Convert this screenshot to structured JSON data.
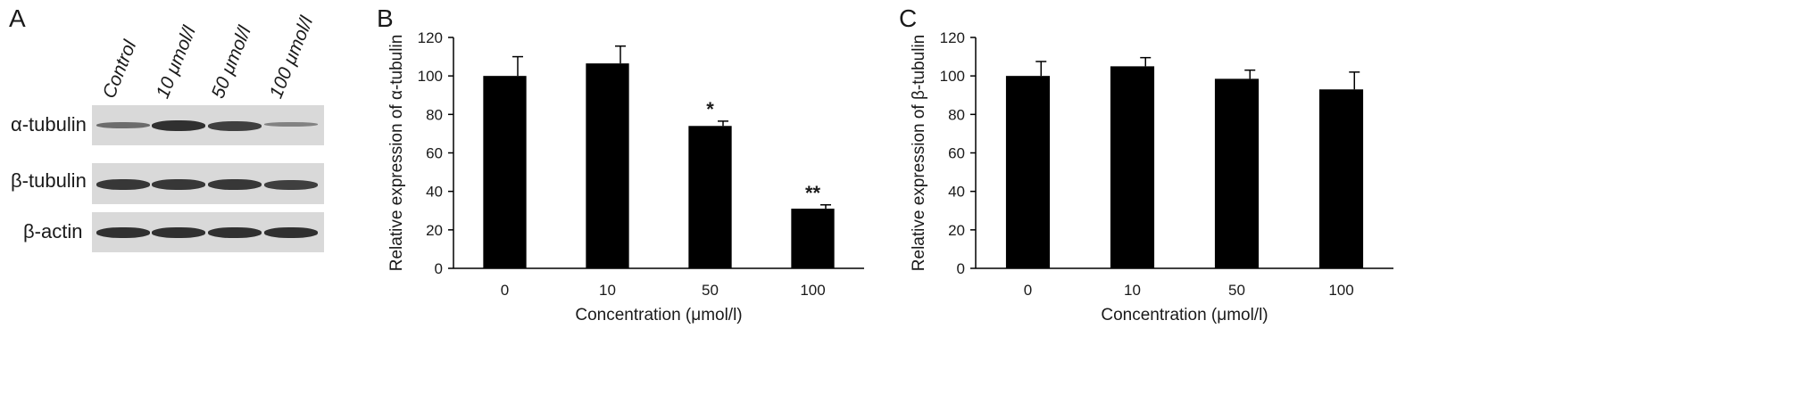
{
  "panels": {
    "a": {
      "letter": "A",
      "lanes": [
        "Control",
        "10 μmol/l",
        "50 μmol/l",
        "100 μmol/l"
      ],
      "rows": [
        {
          "label": "α-tubulin",
          "band_intensity": [
            0.55,
            0.95,
            0.85,
            0.4
          ]
        },
        {
          "label": "β-tubulin",
          "band_intensity": [
            0.9,
            0.9,
            0.9,
            0.85
          ]
        },
        {
          "label": "β-actin",
          "band_intensity": [
            0.95,
            0.95,
            0.95,
            0.95
          ]
        }
      ]
    },
    "b": {
      "letter": "B"
    },
    "c": {
      "letter": "C"
    }
  },
  "chart_data": [
    {
      "type": "bar",
      "panel": "B",
      "categories": [
        "0",
        "10",
        "50",
        "100"
      ],
      "values": [
        100,
        106.5,
        74,
        31
      ],
      "errors": [
        10,
        9,
        2.5,
        2
      ],
      "annotations": [
        "",
        "",
        "*",
        "**"
      ],
      "xlabel": "Concentration (μmol/l)",
      "ylabel": "Relative expression of α-tubulin",
      "ylim": [
        0,
        120
      ],
      "yticks": [
        0,
        20,
        40,
        60,
        80,
        100,
        120
      ],
      "bar_color": "#000000",
      "grid": false
    },
    {
      "type": "bar",
      "panel": "C",
      "categories": [
        "0",
        "10",
        "50",
        "100"
      ],
      "values": [
        100,
        105,
        98.5,
        93
      ],
      "errors": [
        7.5,
        4.5,
        4.5,
        9
      ],
      "annotations": [
        "",
        "",
        "",
        ""
      ],
      "xlabel": "Concentration (μmol/l)",
      "ylabel": "Relative expression of β-tubulin",
      "ylim": [
        0,
        120
      ],
      "yticks": [
        0,
        20,
        40,
        60,
        80,
        100,
        120
      ],
      "bar_color": "#000000",
      "grid": false
    }
  ]
}
